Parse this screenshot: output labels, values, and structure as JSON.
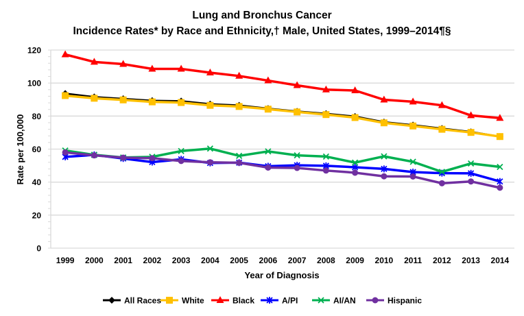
{
  "chart_data": {
    "type": "line",
    "title": "Lung and Bronchus Cancer",
    "subtitle": "Incidence Rates* by Race and Ethnicity,† Male, United States, 1999–2014¶§",
    "xlabel": "Year of Diagnosis",
    "ylabel": "Rate per 100,000",
    "ylim": [
      0,
      120
    ],
    "yticks": [
      "0",
      "20",
      "40",
      "60",
      "80",
      "100",
      "120"
    ],
    "grid": true,
    "legend": "bottom",
    "categories": [
      "1999",
      "2000",
      "2001",
      "2002",
      "2003",
      "2004",
      "2005",
      "2006",
      "2007",
      "2008",
      "2009",
      "2010",
      "2011",
      "2012",
      "2013",
      "2014"
    ],
    "series": [
      {
        "name": "All Races",
        "color": "#000000",
        "marker": "diamond",
        "values": [
          93.7,
          91.6,
          90.5,
          89.4,
          89.1,
          87.3,
          86.5,
          84.6,
          82.9,
          81.5,
          79.8,
          76.4,
          74.6,
          72.5,
          70.5,
          67.6
        ]
      },
      {
        "name": "White",
        "color": "#FFC000",
        "marker": "square",
        "values": [
          92.4,
          90.8,
          89.8,
          88.6,
          88.2,
          86.5,
          85.8,
          84.2,
          82.5,
          80.9,
          79.1,
          75.9,
          74.0,
          72.0,
          70.1,
          67.6
        ]
      },
      {
        "name": "Black",
        "color": "#FF0000",
        "marker": "triangle",
        "values": [
          117.3,
          112.8,
          111.5,
          108.6,
          108.6,
          106.3,
          104.3,
          101.5,
          98.6,
          96.0,
          95.5,
          89.9,
          88.7,
          86.5,
          80.4,
          78.8
        ]
      },
      {
        "name": "A/PI",
        "color": "#0000FF",
        "marker": "star",
        "values": [
          55.3,
          56.5,
          54.3,
          52.1,
          53.8,
          51.6,
          51.8,
          49.6,
          50.2,
          49.9,
          49.0,
          48.0,
          46.1,
          45.4,
          45.3,
          40.4
        ]
      },
      {
        "name": "AI/AN",
        "color": "#00B050",
        "marker": "x",
        "values": [
          59.1,
          56.5,
          54.9,
          55.3,
          58.8,
          60.3,
          55.9,
          58.6,
          56.2,
          55.5,
          51.8,
          55.6,
          52.3,
          46.2,
          51.3,
          49.2
        ]
      },
      {
        "name": "Hispanic",
        "color": "#7030A0",
        "marker": "circle",
        "values": [
          58.0,
          56.2,
          54.8,
          54.5,
          52.8,
          52.0,
          51.7,
          48.8,
          48.6,
          47.0,
          45.7,
          43.5,
          43.4,
          39.3,
          40.4,
          36.6
        ]
      }
    ]
  }
}
